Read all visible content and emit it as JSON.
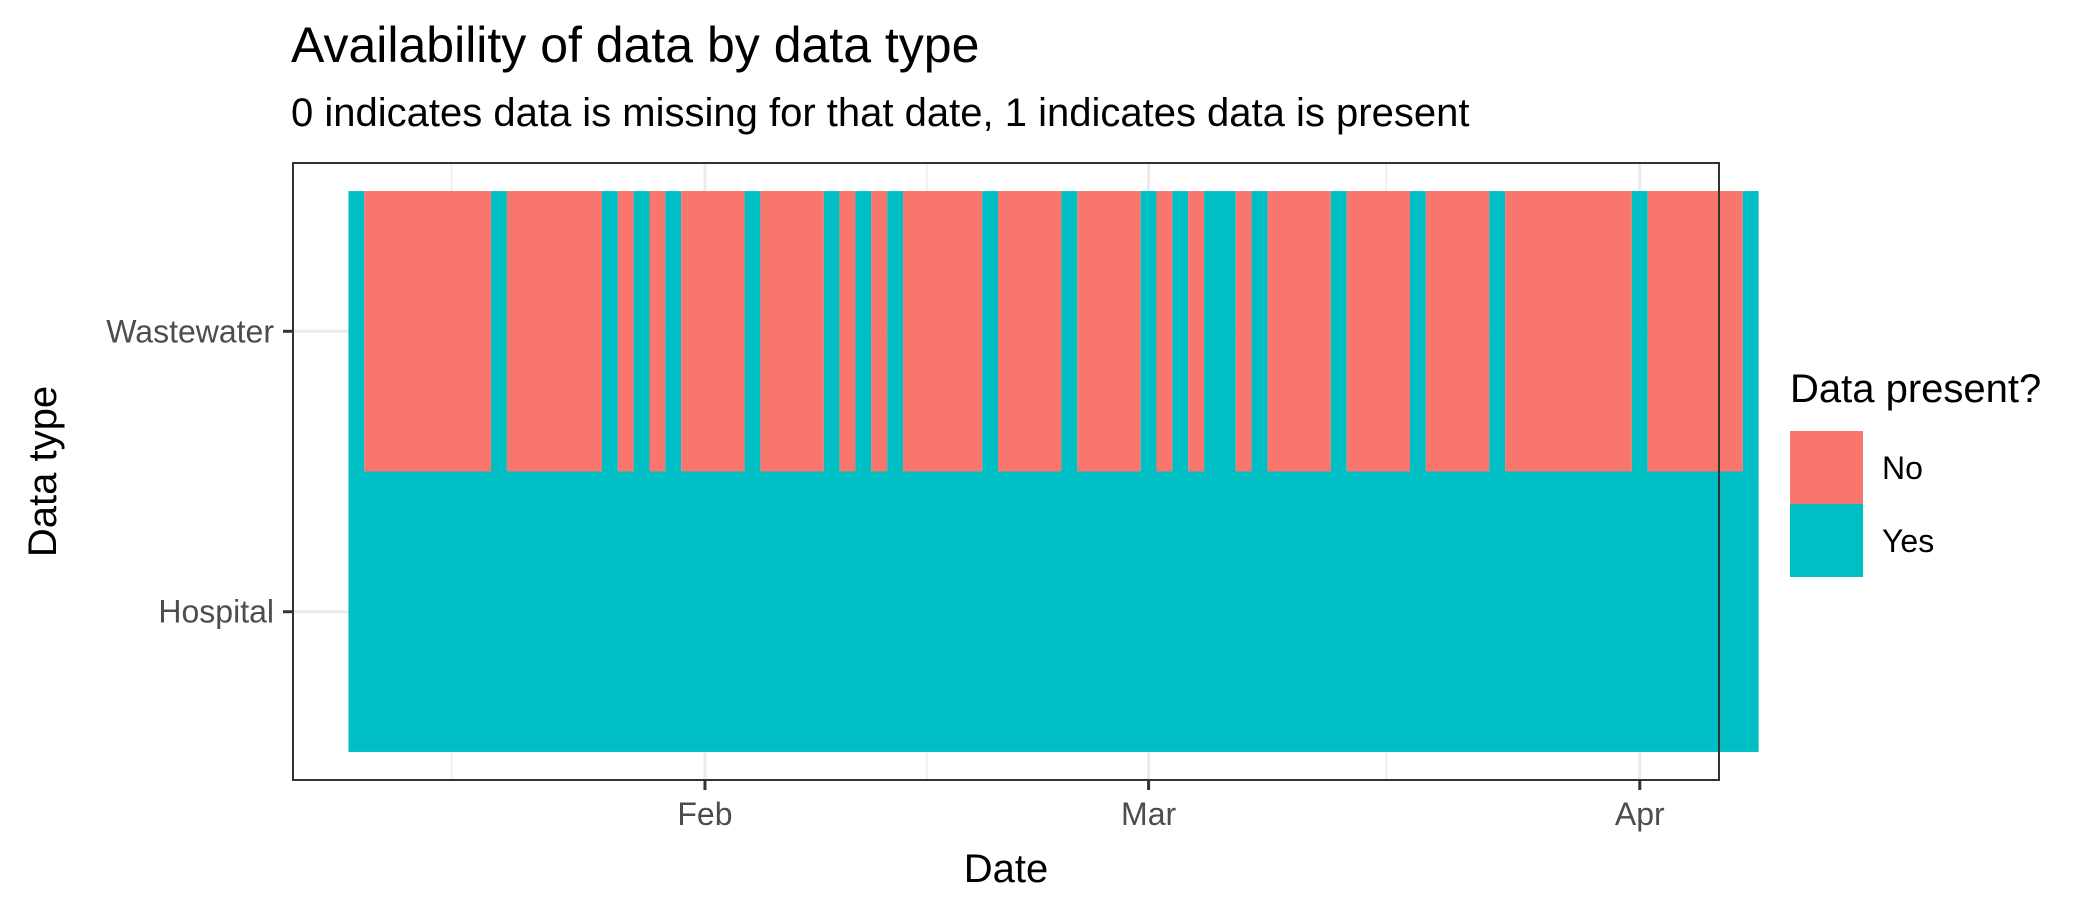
{
  "chart_data": {
    "type": "heatmap",
    "title": "Availability of data by data type",
    "subtitle": "0 indicates data is missing for that date, 1 indicates data is present",
    "xlabel": "Date",
    "ylabel": "Data type",
    "x_axis": {
      "type": "date",
      "range": [
        "2025-01-06",
        "2025-04-06"
      ],
      "ticks": [
        {
          "date": "2025-02-01",
          "label": "Feb"
        },
        {
          "date": "2025-03-01",
          "label": "Mar"
        },
        {
          "date": "2025-04-01",
          "label": "Apr"
        }
      ],
      "minor_gridlines": [
        "2025-01-16",
        "2025-02-15",
        "2025-03-16"
      ]
    },
    "y_categories": [
      "Wastewater",
      "Hospital"
    ],
    "colors": {
      "No": "#F8766D",
      "Yes": "#00BFC4"
    },
    "legend": {
      "title": "Data present?",
      "position": "right",
      "entries": [
        "No",
        "Yes"
      ]
    },
    "series": [
      {
        "name": "Wastewater",
        "segments": [
          {
            "start": "2025-01-10",
            "end": "2025-01-10",
            "present": "Yes"
          },
          {
            "start": "2025-01-11",
            "end": "2025-01-18",
            "present": "No"
          },
          {
            "start": "2025-01-19",
            "end": "2025-01-19",
            "present": "Yes"
          },
          {
            "start": "2025-01-20",
            "end": "2025-01-25",
            "present": "No"
          },
          {
            "start": "2025-01-26",
            "end": "2025-01-26",
            "present": "Yes"
          },
          {
            "start": "2025-01-27",
            "end": "2025-01-27",
            "present": "No"
          },
          {
            "start": "2025-01-28",
            "end": "2025-01-28",
            "present": "Yes"
          },
          {
            "start": "2025-01-29",
            "end": "2025-01-29",
            "present": "No"
          },
          {
            "start": "2025-01-30",
            "end": "2025-01-30",
            "present": "Yes"
          },
          {
            "start": "2025-01-31",
            "end": "2025-02-03",
            "present": "No"
          },
          {
            "start": "2025-02-04",
            "end": "2025-02-04",
            "present": "Yes"
          },
          {
            "start": "2025-02-05",
            "end": "2025-02-08",
            "present": "No"
          },
          {
            "start": "2025-02-09",
            "end": "2025-02-09",
            "present": "Yes"
          },
          {
            "start": "2025-02-10",
            "end": "2025-02-10",
            "present": "No"
          },
          {
            "start": "2025-02-11",
            "end": "2025-02-11",
            "present": "Yes"
          },
          {
            "start": "2025-02-12",
            "end": "2025-02-12",
            "present": "No"
          },
          {
            "start": "2025-02-13",
            "end": "2025-02-13",
            "present": "Yes"
          },
          {
            "start": "2025-02-14",
            "end": "2025-02-18",
            "present": "No"
          },
          {
            "start": "2025-02-19",
            "end": "2025-02-19",
            "present": "Yes"
          },
          {
            "start": "2025-02-20",
            "end": "2025-02-23",
            "present": "No"
          },
          {
            "start": "2025-02-24",
            "end": "2025-02-24",
            "present": "Yes"
          },
          {
            "start": "2025-02-25",
            "end": "2025-02-28",
            "present": "No"
          },
          {
            "start": "2025-03-01",
            "end": "2025-03-01",
            "present": "Yes"
          },
          {
            "start": "2025-03-02",
            "end": "2025-03-02",
            "present": "No"
          },
          {
            "start": "2025-03-03",
            "end": "2025-03-03",
            "present": "Yes"
          },
          {
            "start": "2025-03-04",
            "end": "2025-03-04",
            "present": "No"
          },
          {
            "start": "2025-03-05",
            "end": "2025-03-06",
            "present": "Yes"
          },
          {
            "start": "2025-03-07",
            "end": "2025-03-07",
            "present": "No"
          },
          {
            "start": "2025-03-08",
            "end": "2025-03-08",
            "present": "Yes"
          },
          {
            "start": "2025-03-09",
            "end": "2025-03-12",
            "present": "No"
          },
          {
            "start": "2025-03-13",
            "end": "2025-03-13",
            "present": "Yes"
          },
          {
            "start": "2025-03-14",
            "end": "2025-03-17",
            "present": "No"
          },
          {
            "start": "2025-03-18",
            "end": "2025-03-18",
            "present": "Yes"
          },
          {
            "start": "2025-03-19",
            "end": "2025-03-22",
            "present": "No"
          },
          {
            "start": "2025-03-23",
            "end": "2025-03-23",
            "present": "Yes"
          },
          {
            "start": "2025-03-24",
            "end": "2025-03-31",
            "present": "No"
          },
          {
            "start": "2025-04-01",
            "end": "2025-04-01",
            "present": "Yes"
          },
          {
            "start": "2025-04-02",
            "end": "2025-04-07",
            "present": "No"
          },
          {
            "start": "2025-04-08",
            "end": "2025-04-08",
            "present": "Yes"
          }
        ]
      },
      {
        "name": "Hospital",
        "segments": [
          {
            "start": "2025-01-10",
            "end": "2025-04-08",
            "present": "Yes"
          }
        ]
      }
    ]
  }
}
